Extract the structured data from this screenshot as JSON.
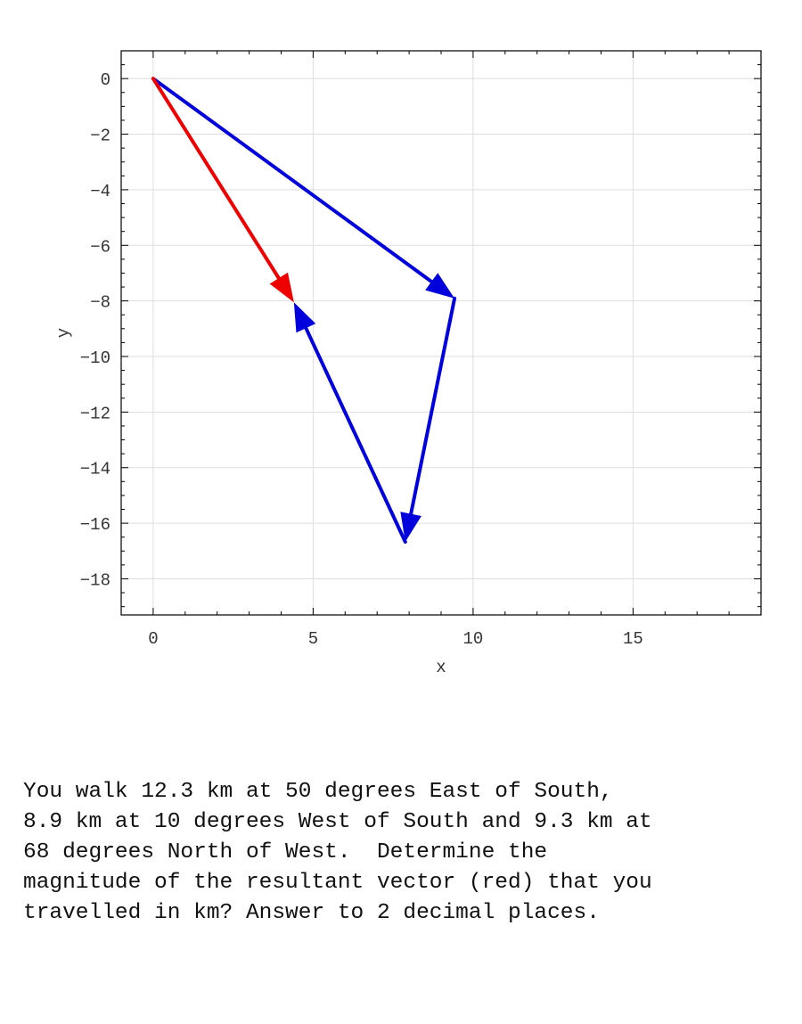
{
  "chart_data": {
    "type": "vector-diagram",
    "xlabel": "x",
    "ylabel": "y",
    "xlim": [
      -1,
      19
    ],
    "ylim": [
      -19.3,
      1
    ],
    "xticks": [
      0,
      5,
      10,
      15
    ],
    "yticks": [
      0,
      -2,
      -4,
      -6,
      -8,
      -10,
      -12,
      -14,
      -16,
      -18
    ],
    "grid": true,
    "vectors": [
      {
        "from": [
          0,
          0
        ],
        "to": [
          9.42,
          -7.91
        ],
        "color": "#0000dd"
      },
      {
        "from": [
          9.42,
          -7.91
        ],
        "to": [
          7.88,
          -16.67
        ],
        "color": "#0000dd"
      },
      {
        "from": [
          7.88,
          -16.67
        ],
        "to": [
          4.4,
          -8.05
        ],
        "color": "#0000dd"
      },
      {
        "from": [
          0,
          0
        ],
        "to": [
          4.4,
          -8.05
        ],
        "color": "#ee0000"
      }
    ]
  },
  "question": {
    "text": "You walk 12.3 km at 50 degrees East of South,\n8.9 km at 10 degrees West of South and 9.3 km at\n68 degrees North of West.  Determine the\nmagnitude of the resultant vector (red) that you\ntravelled in km? Answer to 2 decimal places."
  }
}
